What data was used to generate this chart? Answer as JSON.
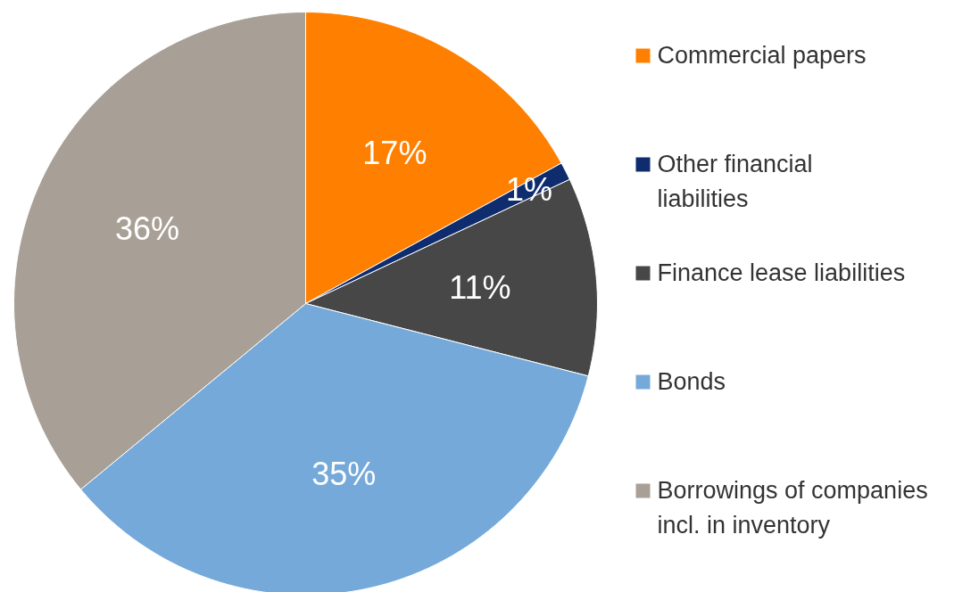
{
  "chart_data": {
    "type": "pie",
    "categories": [
      "Commercial papers",
      "Other financial liabilities",
      "Finance lease liabilities",
      "Bonds",
      "Borrowings of companies incl. in inventory"
    ],
    "values": [
      17,
      1,
      11,
      35,
      36
    ],
    "colors": [
      "#ff8000",
      "#0f2d6e",
      "#474747",
      "#75a9d9",
      "#a89f96"
    ],
    "value_labels": [
      "17%",
      "1%",
      "11%",
      "35%",
      "36%"
    ],
    "legend": "right"
  }
}
